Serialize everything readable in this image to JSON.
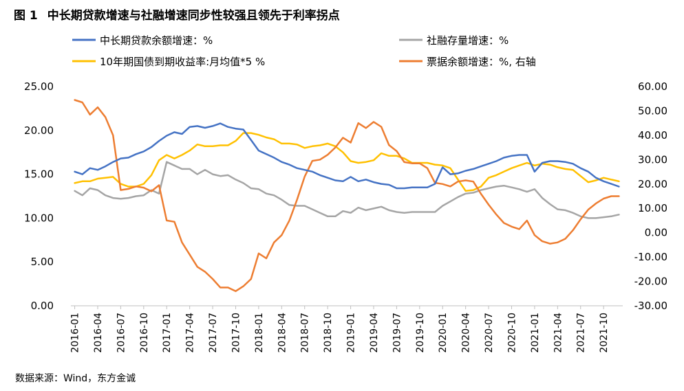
{
  "title": {
    "prefix": "图 1",
    "text": "中长期贷款增速与社融增速同步性较强且领先于利率拐点"
  },
  "source": "数据来源：Wind，东方金诚",
  "chart_data": {
    "type": "line",
    "x": [
      "2016-01",
      "2016-02",
      "2016-03",
      "2016-04",
      "2016-05",
      "2016-06",
      "2016-07",
      "2016-08",
      "2016-09",
      "2016-10",
      "2016-11",
      "2016-12",
      "2017-01",
      "2017-02",
      "2017-03",
      "2017-04",
      "2017-05",
      "2017-06",
      "2017-07",
      "2017-08",
      "2017-09",
      "2017-10",
      "2017-11",
      "2017-12",
      "2018-01",
      "2018-02",
      "2018-03",
      "2018-04",
      "2018-05",
      "2018-06",
      "2018-07",
      "2018-08",
      "2018-09",
      "2018-10",
      "2018-11",
      "2018-12",
      "2019-01",
      "2019-02",
      "2019-03",
      "2019-04",
      "2019-05",
      "2019-06",
      "2019-07",
      "2019-08",
      "2019-09",
      "2019-10",
      "2019-11",
      "2019-12",
      "2020-01",
      "2020-02",
      "2020-03",
      "2020-04",
      "2020-05",
      "2020-06",
      "2020-07",
      "2020-08",
      "2020-09",
      "2020-10",
      "2020-11",
      "2020-12",
      "2021-01",
      "2021-02",
      "2021-03",
      "2021-04",
      "2021-05",
      "2021-06",
      "2021-07",
      "2021-08",
      "2021-09",
      "2021-10",
      "2021-11",
      "2021-12"
    ],
    "x_tick_labels": [
      "2016-01",
      "2016-04",
      "2016-07",
      "2016-10",
      "2017-01",
      "2017-04",
      "2017-07",
      "2017-10",
      "2018-01",
      "2018-04",
      "2018-07",
      "2018-10",
      "2019-01",
      "2019-04",
      "2019-07",
      "2019-10",
      "2020-01",
      "2020-04",
      "2020-07",
      "2020-10",
      "2021-01",
      "2021-04",
      "2021-07",
      "2021-10"
    ],
    "y_left": {
      "ticks": [
        "0.00",
        "5.00",
        "10.00",
        "15.00",
        "20.00",
        "25.00"
      ],
      "ylim": [
        0,
        25
      ]
    },
    "y_right": {
      "ticks": [
        "-30.00",
        "-20.00",
        "-10.00",
        "0.00",
        "10.00",
        "20.00",
        "30.00",
        "40.00",
        "50.00",
        "60.00"
      ],
      "ylim": [
        -30,
        60
      ]
    },
    "legend_position": "top",
    "series": [
      {
        "name": "中长期贷款余额增速：%",
        "color": "#4472c4",
        "axis": "left",
        "values": [
          15.3,
          15.0,
          15.7,
          15.5,
          15.9,
          16.4,
          16.8,
          16.9,
          17.3,
          17.6,
          18.1,
          18.8,
          19.4,
          19.8,
          19.6,
          20.4,
          20.5,
          20.3,
          20.5,
          20.8,
          20.4,
          20.2,
          20.1,
          18.9,
          17.7,
          17.3,
          16.9,
          16.4,
          16.1,
          15.7,
          15.5,
          15.3,
          14.9,
          14.6,
          14.3,
          14.2,
          14.7,
          14.2,
          14.4,
          14.1,
          13.9,
          13.8,
          13.4,
          13.4,
          13.5,
          13.5,
          13.5,
          13.9,
          15.8,
          15.0,
          15.1,
          15.4,
          15.6,
          15.9,
          16.2,
          16.5,
          16.9,
          17.1,
          17.2,
          17.2,
          15.3,
          16.3,
          16.5,
          16.5,
          16.4,
          16.2,
          15.7,
          15.3,
          14.6,
          14.2,
          13.9,
          13.6
        ]
      },
      {
        "name": "社融存量增速：%",
        "color": "#a5a5a5",
        "axis": "left",
        "values": [
          13.1,
          12.6,
          13.4,
          13.2,
          12.6,
          12.3,
          12.2,
          12.3,
          12.5,
          12.6,
          13.2,
          12.8,
          16.4,
          16.0,
          15.6,
          15.6,
          15.0,
          15.5,
          15.0,
          14.8,
          14.9,
          14.4,
          14.0,
          13.4,
          13.3,
          12.8,
          12.6,
          12.1,
          11.5,
          11.4,
          11.4,
          11.0,
          10.6,
          10.2,
          10.2,
          10.8,
          10.6,
          11.2,
          10.9,
          11.1,
          11.3,
          10.9,
          10.7,
          10.6,
          10.7,
          10.7,
          10.7,
          10.7,
          11.4,
          11.9,
          12.4,
          12.8,
          12.9,
          13.2,
          13.4,
          13.6,
          13.7,
          13.5,
          13.3,
          13.0,
          13.3,
          12.3,
          11.6,
          11.0,
          10.9,
          10.6,
          10.2,
          10.0,
          10.0,
          10.1,
          10.2,
          10.4
        ]
      },
      {
        "name": "10年期国债到期收益率:月均值*5 %",
        "color": "#ffc000",
        "axis": "left",
        "values": [
          14.0,
          14.2,
          14.2,
          14.5,
          14.6,
          14.7,
          13.9,
          13.6,
          13.6,
          13.9,
          14.9,
          16.6,
          17.2,
          16.8,
          17.2,
          17.7,
          18.4,
          18.2,
          18.2,
          18.3,
          18.3,
          18.8,
          19.7,
          19.7,
          19.5,
          19.2,
          19.0,
          18.5,
          18.5,
          18.4,
          18.0,
          18.2,
          18.3,
          18.5,
          18.2,
          17.5,
          16.5,
          16.3,
          16.4,
          16.6,
          17.4,
          17.1,
          17.1,
          16.8,
          16.3,
          16.3,
          16.3,
          16.1,
          16.0,
          15.7,
          14.4,
          13.1,
          13.2,
          13.6,
          14.6,
          14.9,
          15.3,
          15.7,
          16.0,
          16.3,
          16.0,
          16.2,
          16.1,
          15.8,
          15.6,
          15.5,
          14.8,
          14.1,
          14.3,
          14.6,
          14.4,
          14.2
        ]
      },
      {
        "name": "票据余额增速：%, 右轴",
        "color": "#ed7d31",
        "axis": "right",
        "values": [
          54.5,
          53.5,
          48.5,
          51.5,
          47.5,
          40.0,
          17.5,
          18.0,
          19.0,
          18.5,
          17.0,
          19.5,
          5.0,
          4.5,
          -4.0,
          -9.0,
          -14.0,
          -16.0,
          -19.0,
          -22.5,
          -22.5,
          -24.0,
          -22.0,
          -19.0,
          -8.5,
          -10.5,
          -4.0,
          -1.0,
          5.0,
          13.5,
          23.0,
          29.5,
          30.0,
          32.0,
          35.0,
          39.0,
          37.0,
          45.0,
          43.0,
          45.5,
          43.5,
          36.0,
          33.5,
          29.0,
          28.5,
          28.5,
          26.5,
          20.5,
          20.0,
          19.0,
          21.0,
          21.5,
          21.0,
          16.0,
          11.5,
          7.5,
          4.0,
          2.5,
          1.5,
          5.0,
          -1.0,
          -3.5,
          -4.5,
          -4.0,
          -2.5,
          1.0,
          5.5,
          9.5,
          12.0,
          14.0,
          15.0,
          15.0
        ]
      }
    ]
  }
}
